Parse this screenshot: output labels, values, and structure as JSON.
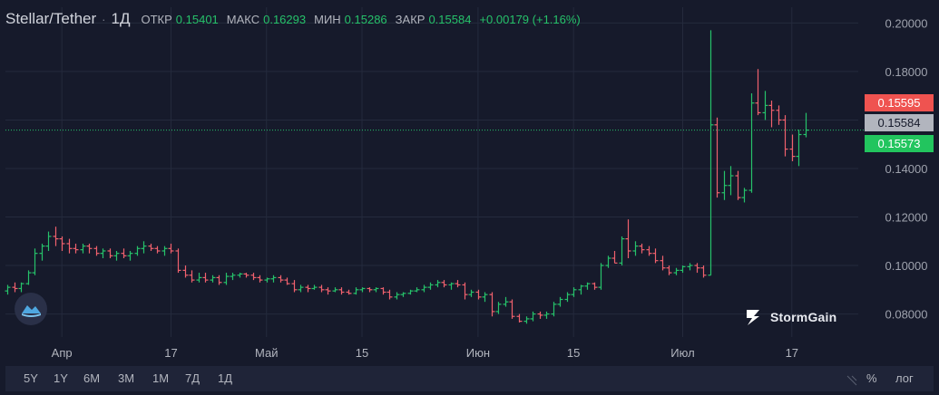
{
  "legend": {
    "symbol": "Stellar/Tether",
    "separator": "·",
    "timeframe": "1Д",
    "open_label": "ОТКР",
    "open": "0.15401",
    "high_label": "МАКС",
    "high": "0.16293",
    "low_label": "МИН",
    "low": "0.15286",
    "close_label": "ЗАКР",
    "close": "0.15584",
    "change": "+0.00179 (+1.16%)"
  },
  "price_tags": {
    "ask": "0.15595",
    "last": "0.15584",
    "bid": "0.15573"
  },
  "bottom_bar": {
    "timeframes": [
      "5Y",
      "1Y",
      "6M",
      "3M",
      "1M",
      "7Д",
      "1Д"
    ],
    "percent": "%",
    "log": "лог"
  },
  "brand": {
    "name": "StormGain"
  },
  "colors": {
    "up": "#26c26a",
    "down": "#f0616d",
    "bg": "#161a2b",
    "grid": "#242a3d"
  },
  "icons": [
    "cloud-icon",
    "storm-icon",
    "resize-handle-icon"
  ],
  "chart_data": {
    "type": "ohlc",
    "title": "Stellar/Tether 1Д",
    "y_ticks": [
      "0.20000",
      "0.18000",
      "0.16000",
      "0.14000",
      "0.12000",
      "0.10000",
      "0.08000"
    ],
    "ylim": [
      0.0705,
      0.2065
    ],
    "x_labels": [
      {
        "label": "Апр",
        "i": 8
      },
      {
        "label": "17",
        "i": 24
      },
      {
        "label": "Май",
        "i": 38
      },
      {
        "label": "15",
        "i": 52
      },
      {
        "label": "Июн",
        "i": 69
      },
      {
        "label": "15",
        "i": 83
      },
      {
        "label": "Июл",
        "i": 99
      },
      {
        "label": "17",
        "i": 115
      }
    ],
    "candles": [
      [
        0.0895,
        0.092,
        0.088,
        0.091
      ],
      [
        0.091,
        0.093,
        0.089,
        0.0905
      ],
      [
        0.0905,
        0.093,
        0.089,
        0.0925
      ],
      [
        0.0925,
        0.098,
        0.092,
        0.097
      ],
      [
        0.097,
        0.107,
        0.096,
        0.105
      ],
      [
        0.105,
        0.109,
        0.102,
        0.108
      ],
      [
        0.108,
        0.114,
        0.106,
        0.112
      ],
      [
        0.112,
        0.116,
        0.108,
        0.111
      ],
      [
        0.111,
        0.112,
        0.106,
        0.109
      ],
      [
        0.109,
        0.111,
        0.105,
        0.107
      ],
      [
        0.107,
        0.109,
        0.105,
        0.1065
      ],
      [
        0.1065,
        0.109,
        0.105,
        0.108
      ],
      [
        0.108,
        0.109,
        0.105,
        0.107
      ],
      [
        0.107,
        0.108,
        0.104,
        0.105
      ],
      [
        0.105,
        0.107,
        0.103,
        0.106
      ],
      [
        0.106,
        0.107,
        0.103,
        0.104
      ],
      [
        0.104,
        0.106,
        0.102,
        0.105
      ],
      [
        0.105,
        0.107,
        0.103,
        0.104
      ],
      [
        0.104,
        0.106,
        0.102,
        0.105
      ],
      [
        0.105,
        0.108,
        0.104,
        0.107
      ],
      [
        0.107,
        0.11,
        0.105,
        0.108
      ],
      [
        0.108,
        0.109,
        0.106,
        0.107
      ],
      [
        0.107,
        0.108,
        0.105,
        0.106
      ],
      [
        0.106,
        0.108,
        0.104,
        0.107
      ],
      [
        0.107,
        0.109,
        0.105,
        0.106
      ],
      [
        0.106,
        0.107,
        0.097,
        0.098
      ],
      [
        0.098,
        0.1,
        0.095,
        0.096
      ],
      [
        0.096,
        0.098,
        0.093,
        0.094
      ],
      [
        0.094,
        0.097,
        0.093,
        0.095
      ],
      [
        0.095,
        0.097,
        0.093,
        0.094
      ],
      [
        0.094,
        0.096,
        0.093,
        0.095
      ],
      [
        0.095,
        0.096,
        0.092,
        0.093
      ],
      [
        0.093,
        0.097,
        0.092,
        0.0955
      ],
      [
        0.0955,
        0.097,
        0.094,
        0.096
      ],
      [
        0.096,
        0.097,
        0.095,
        0.0965
      ],
      [
        0.0965,
        0.097,
        0.095,
        0.096
      ],
      [
        0.096,
        0.097,
        0.094,
        0.095
      ],
      [
        0.095,
        0.096,
        0.093,
        0.094
      ],
      [
        0.094,
        0.095,
        0.093,
        0.0945
      ],
      [
        0.0945,
        0.096,
        0.093,
        0.095
      ],
      [
        0.095,
        0.096,
        0.093,
        0.094
      ],
      [
        0.094,
        0.095,
        0.092,
        0.0925
      ],
      [
        0.0925,
        0.094,
        0.089,
        0.09
      ],
      [
        0.09,
        0.092,
        0.089,
        0.091
      ],
      [
        0.091,
        0.092,
        0.089,
        0.0905
      ],
      [
        0.0905,
        0.092,
        0.09,
        0.091
      ],
      [
        0.091,
        0.092,
        0.089,
        0.09
      ],
      [
        0.09,
        0.091,
        0.088,
        0.0895
      ],
      [
        0.0895,
        0.091,
        0.089,
        0.09
      ],
      [
        0.09,
        0.091,
        0.088,
        0.089
      ],
      [
        0.089,
        0.09,
        0.088,
        0.0885
      ],
      [
        0.0885,
        0.091,
        0.088,
        0.09
      ],
      [
        0.09,
        0.091,
        0.089,
        0.0905
      ],
      [
        0.0905,
        0.091,
        0.089,
        0.09
      ],
      [
        0.09,
        0.091,
        0.089,
        0.0905
      ],
      [
        0.0905,
        0.091,
        0.088,
        0.089
      ],
      [
        0.089,
        0.09,
        0.086,
        0.087
      ],
      [
        0.087,
        0.089,
        0.086,
        0.088
      ],
      [
        0.088,
        0.089,
        0.087,
        0.0885
      ],
      [
        0.0885,
        0.09,
        0.088,
        0.0895
      ],
      [
        0.0895,
        0.091,
        0.089,
        0.09
      ],
      [
        0.09,
        0.092,
        0.089,
        0.091
      ],
      [
        0.091,
        0.093,
        0.09,
        0.092
      ],
      [
        0.092,
        0.094,
        0.091,
        0.093
      ],
      [
        0.093,
        0.094,
        0.091,
        0.092
      ],
      [
        0.092,
        0.093,
        0.09,
        0.0925
      ],
      [
        0.0925,
        0.094,
        0.091,
        0.092
      ],
      [
        0.092,
        0.093,
        0.086,
        0.088
      ],
      [
        0.088,
        0.09,
        0.087,
        0.089
      ],
      [
        0.089,
        0.09,
        0.086,
        0.087
      ],
      [
        0.087,
        0.089,
        0.085,
        0.088
      ],
      [
        0.088,
        0.089,
        0.079,
        0.081
      ],
      [
        0.081,
        0.085,
        0.08,
        0.084
      ],
      [
        0.084,
        0.087,
        0.083,
        0.085
      ],
      [
        0.085,
        0.086,
        0.078,
        0.079
      ],
      [
        0.079,
        0.08,
        0.0765,
        0.077
      ],
      [
        0.077,
        0.079,
        0.076,
        0.078
      ],
      [
        0.078,
        0.081,
        0.077,
        0.08
      ],
      [
        0.08,
        0.081,
        0.078,
        0.0795
      ],
      [
        0.0795,
        0.081,
        0.078,
        0.08
      ],
      [
        0.08,
        0.085,
        0.079,
        0.084
      ],
      [
        0.084,
        0.087,
        0.083,
        0.086
      ],
      [
        0.086,
        0.089,
        0.085,
        0.088
      ],
      [
        0.088,
        0.091,
        0.087,
        0.09
      ],
      [
        0.09,
        0.092,
        0.088,
        0.0915
      ],
      [
        0.0915,
        0.093,
        0.09,
        0.0925
      ],
      [
        0.0925,
        0.093,
        0.09,
        0.091
      ],
      [
        0.091,
        0.101,
        0.09,
        0.1
      ],
      [
        0.1,
        0.104,
        0.099,
        0.103
      ],
      [
        0.103,
        0.106,
        0.101,
        0.101
      ],
      [
        0.101,
        0.112,
        0.1,
        0.111
      ],
      [
        0.111,
        0.119,
        0.103,
        0.106
      ],
      [
        0.106,
        0.11,
        0.104,
        0.108
      ],
      [
        0.108,
        0.109,
        0.105,
        0.1065
      ],
      [
        0.1065,
        0.108,
        0.104,
        0.105
      ],
      [
        0.105,
        0.107,
        0.101,
        0.102
      ],
      [
        0.102,
        0.104,
        0.098,
        0.099
      ],
      [
        0.099,
        0.1,
        0.096,
        0.097
      ],
      [
        0.097,
        0.099,
        0.096,
        0.098
      ],
      [
        0.098,
        0.1,
        0.097,
        0.0995
      ],
      [
        0.0995,
        0.101,
        0.098,
        0.1
      ],
      [
        0.1,
        0.101,
        0.097,
        0.099
      ],
      [
        0.099,
        0.1,
        0.095,
        0.096
      ],
      [
        0.096,
        0.197,
        0.096,
        0.158
      ],
      [
        0.158,
        0.161,
        0.128,
        0.13
      ],
      [
        0.13,
        0.139,
        0.127,
        0.133
      ],
      [
        0.133,
        0.141,
        0.129,
        0.137
      ],
      [
        0.137,
        0.139,
        0.127,
        0.128
      ],
      [
        0.128,
        0.132,
        0.126,
        0.131
      ],
      [
        0.131,
        0.171,
        0.13,
        0.167
      ],
      [
        0.167,
        0.181,
        0.162,
        0.163
      ],
      [
        0.163,
        0.172,
        0.16,
        0.166
      ],
      [
        0.166,
        0.168,
        0.157,
        0.164
      ],
      [
        0.164,
        0.166,
        0.158,
        0.16
      ],
      [
        0.16,
        0.162,
        0.145,
        0.148
      ],
      [
        0.148,
        0.154,
        0.143,
        0.145
      ],
      [
        0.145,
        0.156,
        0.141,
        0.154
      ],
      [
        0.15401,
        0.16293,
        0.15286,
        0.15584
      ]
    ]
  }
}
